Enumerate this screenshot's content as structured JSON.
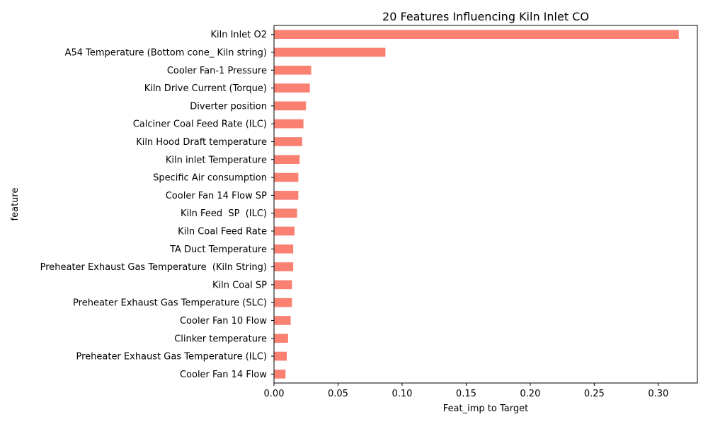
{
  "chart_data": {
    "type": "bar",
    "orientation": "horizontal",
    "title": "20 Features Influencing Kiln Inlet CO",
    "xlabel": "Feat_imp to Target",
    "ylabel": "feature",
    "xlim": [
      0,
      0.3305
    ],
    "xticks": [
      "0.00",
      "0.05",
      "0.10",
      "0.15",
      "0.20",
      "0.25",
      "0.30"
    ],
    "bar_color": "#fa8072",
    "grid": false,
    "categories": [
      "Kiln Inlet O2",
      "A54 Temperature (Bottom cone_ Kiln string)",
      "Cooler Fan-1 Pressure",
      "Kiln Drive Current (Torque)",
      "Diverter position",
      "Calciner Coal Feed Rate (ILC)",
      "Kiln Hood Draft temperature",
      "Kiln inlet Temperature",
      "Specific Air consumption",
      "Cooler Fan 14 Flow SP",
      "Kiln Feed  SP  (ILC)",
      "Kiln Coal Feed Rate",
      "TA Duct Temperature",
      "Preheater Exhaust Gas Temperature  (Kiln String)",
      "Kiln Coal SP",
      "Preheater Exhaust Gas Temperature (SLC)",
      "Cooler Fan 10 Flow",
      "Clinker temperature",
      "Preheater Exhaust Gas Temperature (ILC)",
      "Cooler Fan 14 Flow"
    ],
    "values": [
      0.316,
      0.087,
      0.029,
      0.028,
      0.025,
      0.023,
      0.022,
      0.02,
      0.019,
      0.019,
      0.018,
      0.016,
      0.015,
      0.015,
      0.014,
      0.014,
      0.013,
      0.011,
      0.01,
      0.009
    ]
  }
}
